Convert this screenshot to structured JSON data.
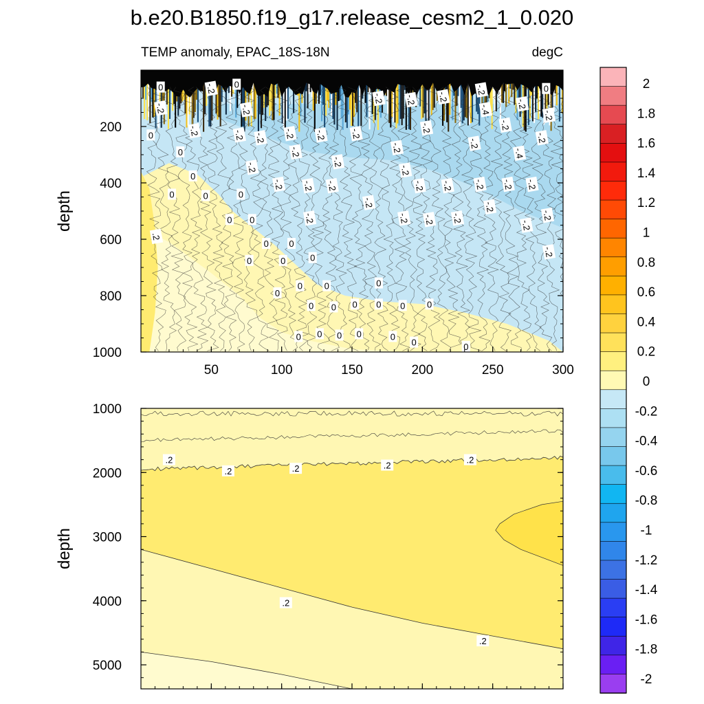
{
  "figure": {
    "title": "b.e20.B1850.f19_g17.release_cesm2_1_0.020",
    "subtitle_left": "TEMP anomaly, EPAC_18S-18N",
    "subtitle_right": "degC"
  },
  "chart_data": [
    {
      "type": "heatmap",
      "panel": "upper",
      "xlabel": "",
      "ylabel": "depth",
      "xlim": [
        0,
        300
      ],
      "ylim": [
        1000,
        0
      ],
      "x_ticks": [
        "50",
        "100",
        "150",
        "200",
        "250",
        "300"
      ],
      "y_ticks": [
        "200",
        "400",
        "600",
        "800",
        "1000"
      ],
      "contour_interval": 0.2,
      "contour_labels": [
        {
          "text": "0",
          "x": 14,
          "depth": 60
        },
        {
          "text": "-.2",
          "x": 50,
          "depth": 65
        },
        {
          "text": "0",
          "x": 68,
          "depth": 50
        },
        {
          "text": "-.2",
          "x": 14,
          "depth": 135
        },
        {
          "text": "-.2",
          "x": 75,
          "depth": 140
        },
        {
          "text": "0",
          "x": 7,
          "depth": 230
        },
        {
          "text": "-.2",
          "x": 38,
          "depth": 215
        },
        {
          "text": "-.2",
          "x": 70,
          "depth": 230
        },
        {
          "text": "-.2",
          "x": 85,
          "depth": 240
        },
        {
          "text": "-.2",
          "x": 106,
          "depth": 225
        },
        {
          "text": "-.2",
          "x": 128,
          "depth": 230
        },
        {
          "text": "-.2",
          "x": 153,
          "depth": 225
        },
        {
          "text": "-.2",
          "x": 169,
          "depth": 100
        },
        {
          "text": "-.2",
          "x": 192,
          "depth": 105
        },
        {
          "text": "-.2",
          "x": 215,
          "depth": 95
        },
        {
          "text": "-.2",
          "x": 203,
          "depth": 205
        },
        {
          "text": "-.2",
          "x": 242,
          "depth": 70
        },
        {
          "text": "-.4",
          "x": 245,
          "depth": 140
        },
        {
          "text": "-.2",
          "x": 271,
          "depth": 120
        },
        {
          "text": "-.2",
          "x": 259,
          "depth": 195
        },
        {
          "text": "0",
          "x": 288,
          "depth": 65
        },
        {
          "text": "-.2",
          "x": 290,
          "depth": 160
        },
        {
          "text": "-.2",
          "x": 285,
          "depth": 240
        },
        {
          "text": "0",
          "x": 28,
          "depth": 290
        },
        {
          "text": "-.2",
          "x": 110,
          "depth": 290
        },
        {
          "text": "-.2",
          "x": 140,
          "depth": 325
        },
        {
          "text": "-.2",
          "x": 79,
          "depth": 345
        },
        {
          "text": "-.2",
          "x": 182,
          "depth": 275
        },
        {
          "text": "-.2",
          "x": 188,
          "depth": 355
        },
        {
          "text": "-.2",
          "x": 237,
          "depth": 260
        },
        {
          "text": "-.4",
          "x": 269,
          "depth": 295
        },
        {
          "text": "0",
          "x": 37,
          "depth": 375
        },
        {
          "text": "-.2",
          "x": 98,
          "depth": 405
        },
        {
          "text": "-.2",
          "x": 119,
          "depth": 410
        },
        {
          "text": "-.2",
          "x": 136,
          "depth": 410
        },
        {
          "text": "-.2",
          "x": 198,
          "depth": 410
        },
        {
          "text": "-.2",
          "x": 218,
          "depth": 410
        },
        {
          "text": "-.2",
          "x": 241,
          "depth": 405
        },
        {
          "text": "-.2",
          "x": 261,
          "depth": 405
        },
        {
          "text": "-.2",
          "x": 278,
          "depth": 405
        },
        {
          "text": "0",
          "x": 22,
          "depth": 440
        },
        {
          "text": "0",
          "x": 46,
          "depth": 445
        },
        {
          "text": "0",
          "x": 71,
          "depth": 440
        },
        {
          "text": "-.2",
          "x": 162,
          "depth": 470
        },
        {
          "text": "-.2",
          "x": 248,
          "depth": 485
        },
        {
          "text": "0",
          "x": 63,
          "depth": 530
        },
        {
          "text": "0",
          "x": 79,
          "depth": 530
        },
        {
          "text": "-.2",
          "x": 120,
          "depth": 525
        },
        {
          "text": "-.2",
          "x": 187,
          "depth": 525
        },
        {
          "text": "-.2",
          "x": 205,
          "depth": 530
        },
        {
          "text": "-.2",
          "x": 225,
          "depth": 525
        },
        {
          "text": "-.2",
          "x": 289,
          "depth": 515
        },
        {
          "text": "-.2",
          "x": 274,
          "depth": 550
        },
        {
          "text": ".2",
          "x": 11,
          "depth": 590
        },
        {
          "text": "0",
          "x": 89,
          "depth": 615
        },
        {
          "text": "0",
          "x": 107,
          "depth": 615
        },
        {
          "text": "-.2",
          "x": 290,
          "depth": 645
        },
        {
          "text": "0",
          "x": 77,
          "depth": 675
        },
        {
          "text": "0",
          "x": 101,
          "depth": 675
        },
        {
          "text": "0",
          "x": 122,
          "depth": 665
        },
        {
          "text": "0",
          "x": 169,
          "depth": 755
        },
        {
          "text": "0",
          "x": 97,
          "depth": 790
        },
        {
          "text": "0",
          "x": 113,
          "depth": 765
        },
        {
          "text": "0",
          "x": 132,
          "depth": 765
        },
        {
          "text": "0",
          "x": 121,
          "depth": 835
        },
        {
          "text": "0",
          "x": 137,
          "depth": 840
        },
        {
          "text": "0",
          "x": 152,
          "depth": 830
        },
        {
          "text": "0",
          "x": 169,
          "depth": 830
        },
        {
          "text": "0",
          "x": 186,
          "depth": 835
        },
        {
          "text": "0",
          "x": 205,
          "depth": 830
        },
        {
          "text": "0",
          "x": 112,
          "depth": 945
        },
        {
          "text": "0",
          "x": 127,
          "depth": 935
        },
        {
          "text": "0",
          "x": 141,
          "depth": 940
        },
        {
          "text": "0",
          "x": 155,
          "depth": 935
        },
        {
          "text": "0",
          "x": 179,
          "depth": 945
        },
        {
          "text": "0",
          "x": 194,
          "depth": 965
        },
        {
          "text": "0",
          "x": 231,
          "depth": 980
        }
      ]
    },
    {
      "type": "heatmap",
      "panel": "lower",
      "xlabel": "",
      "ylabel": "depth",
      "xlim": [
        0,
        300
      ],
      "ylim": [
        5375,
        1000
      ],
      "x_ticks": [],
      "y_ticks": [
        "1000",
        "2000",
        "3000",
        "4000",
        "5000"
      ],
      "contour_interval": 0.2,
      "contour_labels": [
        {
          "text": ".2",
          "x": 20,
          "depth": 1800
        },
        {
          "text": ".2",
          "x": 62,
          "depth": 1975
        },
        {
          "text": ".2",
          "x": 110,
          "depth": 1935
        },
        {
          "text": ".2",
          "x": 175,
          "depth": 1885
        },
        {
          "text": ".2",
          "x": 234,
          "depth": 1800
        },
        {
          "text": ".2",
          "x": 103,
          "depth": 4030
        },
        {
          "text": ".2",
          "x": 243,
          "depth": 4625
        }
      ]
    }
  ],
  "colorbar": {
    "tick_labels": [
      "2",
      "1.8",
      "1.6",
      "1.4",
      "1.2",
      "1",
      "0.8",
      "0.6",
      "0.4",
      "0.2",
      "0",
      "-0.2",
      "-0.4",
      "-0.6",
      "-0.8",
      "-1",
      "-1.2",
      "-1.4",
      "-1.6",
      "-1.8",
      "-2"
    ],
    "colors": [
      "#fbb4b9",
      "#f07d82",
      "#e64a51",
      "#d92023",
      "#e40f10",
      "#f21a0d",
      "#ff2b0a",
      "#ff4a05",
      "#ff6600",
      "#ff8500",
      "#ff9e00",
      "#ffb000",
      "#ffc41e",
      "#ffd23e",
      "#ffe15a",
      "#fff07f",
      "#fff9b4",
      "#c6e8f6",
      "#ade0f3",
      "#95d4ef",
      "#78c8ec",
      "#49bcec",
      "#11b6f2",
      "#1fa5ee",
      "#2997ee",
      "#3086ea",
      "#3c72e4",
      "#3a5de5",
      "#2a3ef3",
      "#1e2af7",
      "#3f25e7",
      "#6a1ff3",
      "#9a3ef0"
    ]
  },
  "colors": {
    "level_0_to_02": "#fff7b3",
    "level_02_to_04": "#ffeb70",
    "level_04_to_06": "#ffe24a",
    "level_m02_to_0": "#c5e6f5",
    "level_m04_to_m02": "#a6d7ee"
  }
}
